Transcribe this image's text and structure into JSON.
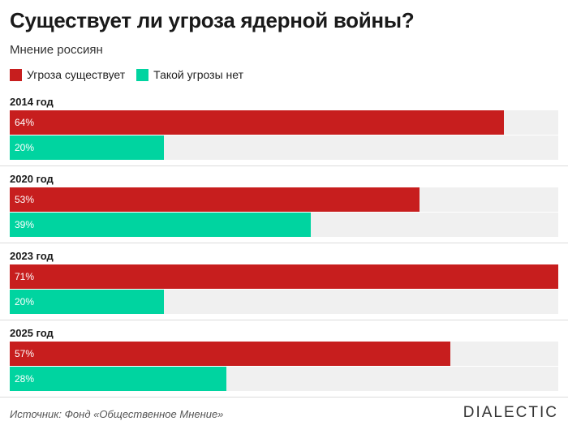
{
  "title": "Существует ли угроза ядерной войны?",
  "subtitle": "Мнение россиян",
  "legend": [
    {
      "label": "Угроза существует",
      "color": "#c71e1e"
    },
    {
      "label": "Такой угрозы нет",
      "color": "#00d4a0"
    }
  ],
  "source": "Источник: Фонд «Общественное Мнение»",
  "brand": "DIALECTIC",
  "chart_data": {
    "type": "bar",
    "orientation": "horizontal",
    "title": "Существует ли угроза ядерной войны?",
    "subtitle": "Мнение россиян",
    "categories": [
      "2014 год",
      "2020 год",
      "2023 год",
      "2025 год"
    ],
    "series": [
      {
        "name": "Угроза существует",
        "color": "#c71e1e",
        "values": [
          64,
          53,
          71,
          57
        ],
        "labels": [
          "64%",
          "53%",
          "71%",
          "57%"
        ]
      },
      {
        "name": "Такой угрозы нет",
        "color": "#00d4a0",
        "values": [
          20,
          39,
          20,
          28
        ],
        "labels": [
          "20%",
          "39%",
          "20%",
          "28%"
        ]
      }
    ],
    "xlim": [
      0,
      71
    ],
    "unit": "%"
  }
}
